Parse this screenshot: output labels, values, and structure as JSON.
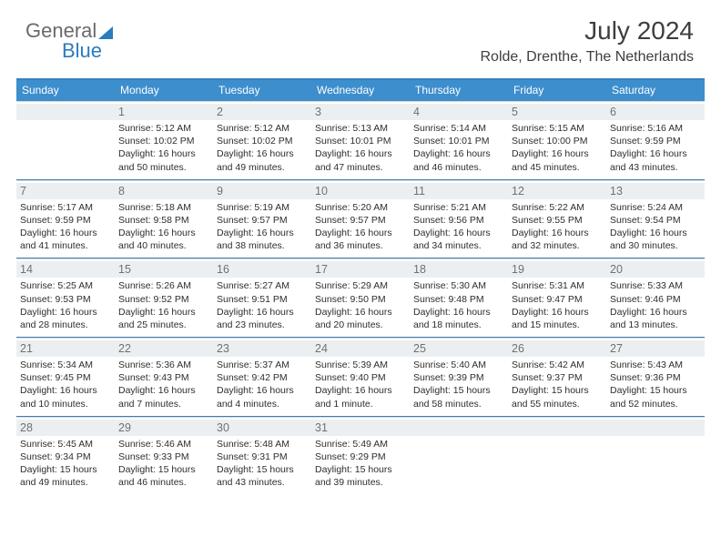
{
  "logo": {
    "text1": "General",
    "text2": "Blue"
  },
  "title": "July 2024",
  "location": "Rolde, Drenthe, The Netherlands",
  "colors": {
    "header_bar": "#3d8ecd",
    "rule": "#3a7fbc",
    "daynum_bg": "#eceff1",
    "text": "#2e2e2e",
    "muted": "#707070",
    "logo_gray": "#6a6a6a",
    "logo_blue": "#2a7bbf"
  },
  "dow": [
    "Sunday",
    "Monday",
    "Tuesday",
    "Wednesday",
    "Thursday",
    "Friday",
    "Saturday"
  ],
  "weeks": [
    [
      {
        "n": "",
        "lines": []
      },
      {
        "n": "1",
        "lines": [
          "Sunrise: 5:12 AM",
          "Sunset: 10:02 PM",
          "Daylight: 16 hours",
          "and 50 minutes."
        ]
      },
      {
        "n": "2",
        "lines": [
          "Sunrise: 5:12 AM",
          "Sunset: 10:02 PM",
          "Daylight: 16 hours",
          "and 49 minutes."
        ]
      },
      {
        "n": "3",
        "lines": [
          "Sunrise: 5:13 AM",
          "Sunset: 10:01 PM",
          "Daylight: 16 hours",
          "and 47 minutes."
        ]
      },
      {
        "n": "4",
        "lines": [
          "Sunrise: 5:14 AM",
          "Sunset: 10:01 PM",
          "Daylight: 16 hours",
          "and 46 minutes."
        ]
      },
      {
        "n": "5",
        "lines": [
          "Sunrise: 5:15 AM",
          "Sunset: 10:00 PM",
          "Daylight: 16 hours",
          "and 45 minutes."
        ]
      },
      {
        "n": "6",
        "lines": [
          "Sunrise: 5:16 AM",
          "Sunset: 9:59 PM",
          "Daylight: 16 hours",
          "and 43 minutes."
        ]
      }
    ],
    [
      {
        "n": "7",
        "lines": [
          "Sunrise: 5:17 AM",
          "Sunset: 9:59 PM",
          "Daylight: 16 hours",
          "and 41 minutes."
        ]
      },
      {
        "n": "8",
        "lines": [
          "Sunrise: 5:18 AM",
          "Sunset: 9:58 PM",
          "Daylight: 16 hours",
          "and 40 minutes."
        ]
      },
      {
        "n": "9",
        "lines": [
          "Sunrise: 5:19 AM",
          "Sunset: 9:57 PM",
          "Daylight: 16 hours",
          "and 38 minutes."
        ]
      },
      {
        "n": "10",
        "lines": [
          "Sunrise: 5:20 AM",
          "Sunset: 9:57 PM",
          "Daylight: 16 hours",
          "and 36 minutes."
        ]
      },
      {
        "n": "11",
        "lines": [
          "Sunrise: 5:21 AM",
          "Sunset: 9:56 PM",
          "Daylight: 16 hours",
          "and 34 minutes."
        ]
      },
      {
        "n": "12",
        "lines": [
          "Sunrise: 5:22 AM",
          "Sunset: 9:55 PM",
          "Daylight: 16 hours",
          "and 32 minutes."
        ]
      },
      {
        "n": "13",
        "lines": [
          "Sunrise: 5:24 AM",
          "Sunset: 9:54 PM",
          "Daylight: 16 hours",
          "and 30 minutes."
        ]
      }
    ],
    [
      {
        "n": "14",
        "lines": [
          "Sunrise: 5:25 AM",
          "Sunset: 9:53 PM",
          "Daylight: 16 hours",
          "and 28 minutes."
        ]
      },
      {
        "n": "15",
        "lines": [
          "Sunrise: 5:26 AM",
          "Sunset: 9:52 PM",
          "Daylight: 16 hours",
          "and 25 minutes."
        ]
      },
      {
        "n": "16",
        "lines": [
          "Sunrise: 5:27 AM",
          "Sunset: 9:51 PM",
          "Daylight: 16 hours",
          "and 23 minutes."
        ]
      },
      {
        "n": "17",
        "lines": [
          "Sunrise: 5:29 AM",
          "Sunset: 9:50 PM",
          "Daylight: 16 hours",
          "and 20 minutes."
        ]
      },
      {
        "n": "18",
        "lines": [
          "Sunrise: 5:30 AM",
          "Sunset: 9:48 PM",
          "Daylight: 16 hours",
          "and 18 minutes."
        ]
      },
      {
        "n": "19",
        "lines": [
          "Sunrise: 5:31 AM",
          "Sunset: 9:47 PM",
          "Daylight: 16 hours",
          "and 15 minutes."
        ]
      },
      {
        "n": "20",
        "lines": [
          "Sunrise: 5:33 AM",
          "Sunset: 9:46 PM",
          "Daylight: 16 hours",
          "and 13 minutes."
        ]
      }
    ],
    [
      {
        "n": "21",
        "lines": [
          "Sunrise: 5:34 AM",
          "Sunset: 9:45 PM",
          "Daylight: 16 hours",
          "and 10 minutes."
        ]
      },
      {
        "n": "22",
        "lines": [
          "Sunrise: 5:36 AM",
          "Sunset: 9:43 PM",
          "Daylight: 16 hours",
          "and 7 minutes."
        ]
      },
      {
        "n": "23",
        "lines": [
          "Sunrise: 5:37 AM",
          "Sunset: 9:42 PM",
          "Daylight: 16 hours",
          "and 4 minutes."
        ]
      },
      {
        "n": "24",
        "lines": [
          "Sunrise: 5:39 AM",
          "Sunset: 9:40 PM",
          "Daylight: 16 hours",
          "and 1 minute."
        ]
      },
      {
        "n": "25",
        "lines": [
          "Sunrise: 5:40 AM",
          "Sunset: 9:39 PM",
          "Daylight: 15 hours",
          "and 58 minutes."
        ]
      },
      {
        "n": "26",
        "lines": [
          "Sunrise: 5:42 AM",
          "Sunset: 9:37 PM",
          "Daylight: 15 hours",
          "and 55 minutes."
        ]
      },
      {
        "n": "27",
        "lines": [
          "Sunrise: 5:43 AM",
          "Sunset: 9:36 PM",
          "Daylight: 15 hours",
          "and 52 minutes."
        ]
      }
    ],
    [
      {
        "n": "28",
        "lines": [
          "Sunrise: 5:45 AM",
          "Sunset: 9:34 PM",
          "Daylight: 15 hours",
          "and 49 minutes."
        ]
      },
      {
        "n": "29",
        "lines": [
          "Sunrise: 5:46 AM",
          "Sunset: 9:33 PM",
          "Daylight: 15 hours",
          "and 46 minutes."
        ]
      },
      {
        "n": "30",
        "lines": [
          "Sunrise: 5:48 AM",
          "Sunset: 9:31 PM",
          "Daylight: 15 hours",
          "and 43 minutes."
        ]
      },
      {
        "n": "31",
        "lines": [
          "Sunrise: 5:49 AM",
          "Sunset: 9:29 PM",
          "Daylight: 15 hours",
          "and 39 minutes."
        ]
      },
      {
        "n": "",
        "lines": []
      },
      {
        "n": "",
        "lines": []
      },
      {
        "n": "",
        "lines": []
      }
    ]
  ]
}
